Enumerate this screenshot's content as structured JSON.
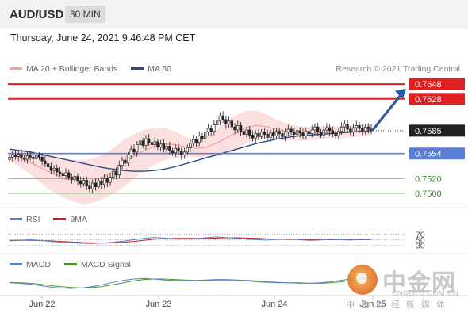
{
  "header": {
    "pair": "AUD/USD",
    "timeframe": "30 MIN",
    "datetime": "Thursday, June 24, 2021 9:46:48 PM CET"
  },
  "legend_main": {
    "items": [
      {
        "label": "MA 20 + Bollinger Bands",
        "color": "#f4a0a0"
      },
      {
        "label": "MA 50",
        "color": "#2a4e8c"
      }
    ],
    "credit": "Research © 2021 Trading Central"
  },
  "legend_rsi": {
    "items": [
      {
        "label": "RSI",
        "color": "#5b7fd6"
      },
      {
        "label": "9MA",
        "color": "#cc2222"
      }
    ]
  },
  "legend_macd": {
    "items": [
      {
        "label": "MACD",
        "color": "#5b7fd6"
      },
      {
        "label": "MACD Signal",
        "color": "#4a9a2a"
      }
    ]
  },
  "colors": {
    "resistance": "#e02020",
    "support": "#5b7fd6",
    "minor_support": "#7ac26a",
    "candle_up": "#ffffff",
    "candle_down": "#222222",
    "arrow": "#2a5aa0"
  },
  "chart_data": {
    "type": "candlestick",
    "symbol": "AUD/USD",
    "interval": "30 MIN",
    "ylim": [
      0.7485,
      0.766
    ],
    "x_ticks": [
      "Jun 22",
      "Jun 23",
      "Jun 24",
      "Jun 25"
    ],
    "levels": [
      {
        "value": 0.7648,
        "label": "0.7648",
        "kind": "resistance"
      },
      {
        "value": 0.7628,
        "label": "0.7628",
        "kind": "resistance"
      },
      {
        "value": 0.7585,
        "label": "0.7585",
        "kind": "last"
      },
      {
        "value": 0.7554,
        "label": "0.7554",
        "kind": "pivot"
      },
      {
        "value": 0.752,
        "label": "0.7520",
        "kind": "support"
      },
      {
        "value": 0.75,
        "label": "0.7500",
        "kind": "support"
      }
    ],
    "close": [
      0.7549,
      0.7552,
      0.755,
      0.7553,
      0.7548,
      0.7546,
      0.7551,
      0.7549,
      0.7547,
      0.7552,
      0.7549,
      0.7544,
      0.754,
      0.7536,
      0.7531,
      0.7534,
      0.7529,
      0.7527,
      0.7524,
      0.7528,
      0.7522,
      0.7519,
      0.7523,
      0.7517,
      0.7513,
      0.7518,
      0.751,
      0.7506,
      0.7514,
      0.7509,
      0.7517,
      0.7512,
      0.752,
      0.7515,
      0.7522,
      0.753,
      0.7525,
      0.7538,
      0.7545,
      0.7541,
      0.7552,
      0.756,
      0.7556,
      0.7566,
      0.7571,
      0.7565,
      0.7574,
      0.7569,
      0.7566,
      0.757,
      0.7563,
      0.7567,
      0.756,
      0.7564,
      0.7558,
      0.7555,
      0.7561,
      0.7557,
      0.7552,
      0.7556,
      0.7562,
      0.7568,
      0.7573,
      0.7569,
      0.7578,
      0.7574,
      0.7583,
      0.7588,
      0.7584,
      0.7593,
      0.7598,
      0.7605,
      0.76,
      0.7594,
      0.7598,
      0.759,
      0.7586,
      0.7592,
      0.7584,
      0.758,
      0.7586,
      0.7579,
      0.7575,
      0.7581,
      0.7577,
      0.7583,
      0.758,
      0.7576,
      0.7582,
      0.7578,
      0.7584,
      0.7581,
      0.7577,
      0.7583,
      0.7587,
      0.7583,
      0.758,
      0.7585,
      0.7582,
      0.7578,
      0.7584,
      0.7581,
      0.7586,
      0.759,
      0.7583,
      0.7579,
      0.7586,
      0.7589,
      0.7585,
      0.7581,
      0.7578,
      0.7584,
      0.759,
      0.7594,
      0.7587,
      0.7583,
      0.7589,
      0.7592,
      0.7588,
      0.7584,
      0.759,
      0.7587,
      0.7585
    ],
    "ma50": [
      0.756,
      0.7558,
      0.7556,
      0.7553,
      0.755,
      0.7547,
      0.7544,
      0.7541,
      0.7538,
      0.7535,
      0.7533,
      0.7531,
      0.753,
      0.753,
      0.7531,
      0.7533,
      0.7536,
      0.754,
      0.7544,
      0.7548,
      0.7552,
      0.7556,
      0.756,
      0.7564,
      0.7568,
      0.7571,
      0.7574,
      0.7576,
      0.7578,
      0.7579,
      0.758,
      0.7581,
      0.7582,
      0.7583,
      0.7584,
      0.7585
    ],
    "ma20": [
      0.7552,
      0.7548,
      0.7542,
      0.7535,
      0.7528,
      0.7522,
      0.7518,
      0.7515,
      0.7517,
      0.7522,
      0.753,
      0.754,
      0.755,
      0.7558,
      0.7564,
      0.7567,
      0.7566,
      0.7563,
      0.7561,
      0.7562,
      0.7568,
      0.7575,
      0.7583,
      0.759,
      0.7592,
      0.759,
      0.7586,
      0.7583,
      0.7581,
      0.7581,
      0.7582,
      0.7583,
      0.7583,
      0.7584,
      0.7585,
      0.7586
    ],
    "bb_width": [
      0.0008,
      0.0012,
      0.0016,
      0.002,
      0.0024,
      0.0026,
      0.0028,
      0.003,
      0.003,
      0.003,
      0.0031,
      0.0032,
      0.003,
      0.0028,
      0.0025,
      0.0022,
      0.0018,
      0.0014,
      0.0012,
      0.0014,
      0.0018,
      0.0022,
      0.0024,
      0.0022,
      0.002,
      0.0016,
      0.0013,
      0.0011,
      0.001,
      0.0009,
      0.0009,
      0.0008,
      0.0008,
      0.0008,
      0.0008,
      0.0008
    ],
    "rsi": {
      "levels": [
        70,
        50,
        30
      ],
      "ylim": [
        20,
        80
      ],
      "rsi": [
        46,
        48,
        50,
        47,
        44,
        41,
        39,
        37,
        36,
        38,
        41,
        45,
        50,
        55,
        58,
        56,
        53,
        52,
        54,
        57,
        60,
        58,
        55,
        52,
        50,
        49,
        51,
        53,
        50,
        48,
        49,
        51,
        50,
        49,
        51,
        50
      ],
      "ma9": [
        48,
        48,
        48,
        47,
        46,
        44,
        42,
        40,
        39,
        38,
        39,
        41,
        44,
        48,
        52,
        54,
        55,
        55,
        55,
        55,
        56,
        57,
        57,
        56,
        55,
        53,
        52,
        51,
        51,
        50,
        50,
        50,
        50,
        50,
        50,
        50
      ]
    },
    "macd": {
      "macd": [
        0.2,
        0.1,
        -0.1,
        -0.4,
        -0.7,
        -0.9,
        -1.0,
        -0.9,
        -0.6,
        -0.2,
        0.3,
        0.7,
        1.0,
        1.1,
        1.0,
        0.8,
        0.7,
        0.6,
        0.7,
        0.8,
        0.9,
        0.9,
        0.8,
        0.6,
        0.4,
        0.3,
        0.2,
        0.2,
        0.1,
        0.1,
        0.2,
        0.4,
        0.7,
        1.0,
        1.2,
        1.3
      ],
      "signal": [
        0.3,
        0.2,
        0.1,
        -0.1,
        -0.4,
        -0.6,
        -0.8,
        -0.9,
        -0.8,
        -0.6,
        -0.2,
        0.2,
        0.6,
        0.9,
        1.0,
        1.0,
        0.9,
        0.8,
        0.7,
        0.7,
        0.8,
        0.8,
        0.8,
        0.7,
        0.6,
        0.4,
        0.3,
        0.2,
        0.2,
        0.1,
        0.1,
        0.2,
        0.4,
        0.7,
        0.9,
        1.1
      ]
    }
  },
  "watermark": {
    "brand": "中金网",
    "url": "CNGOLD.COM.CN",
    "tagline": "中金财经新媒体"
  }
}
